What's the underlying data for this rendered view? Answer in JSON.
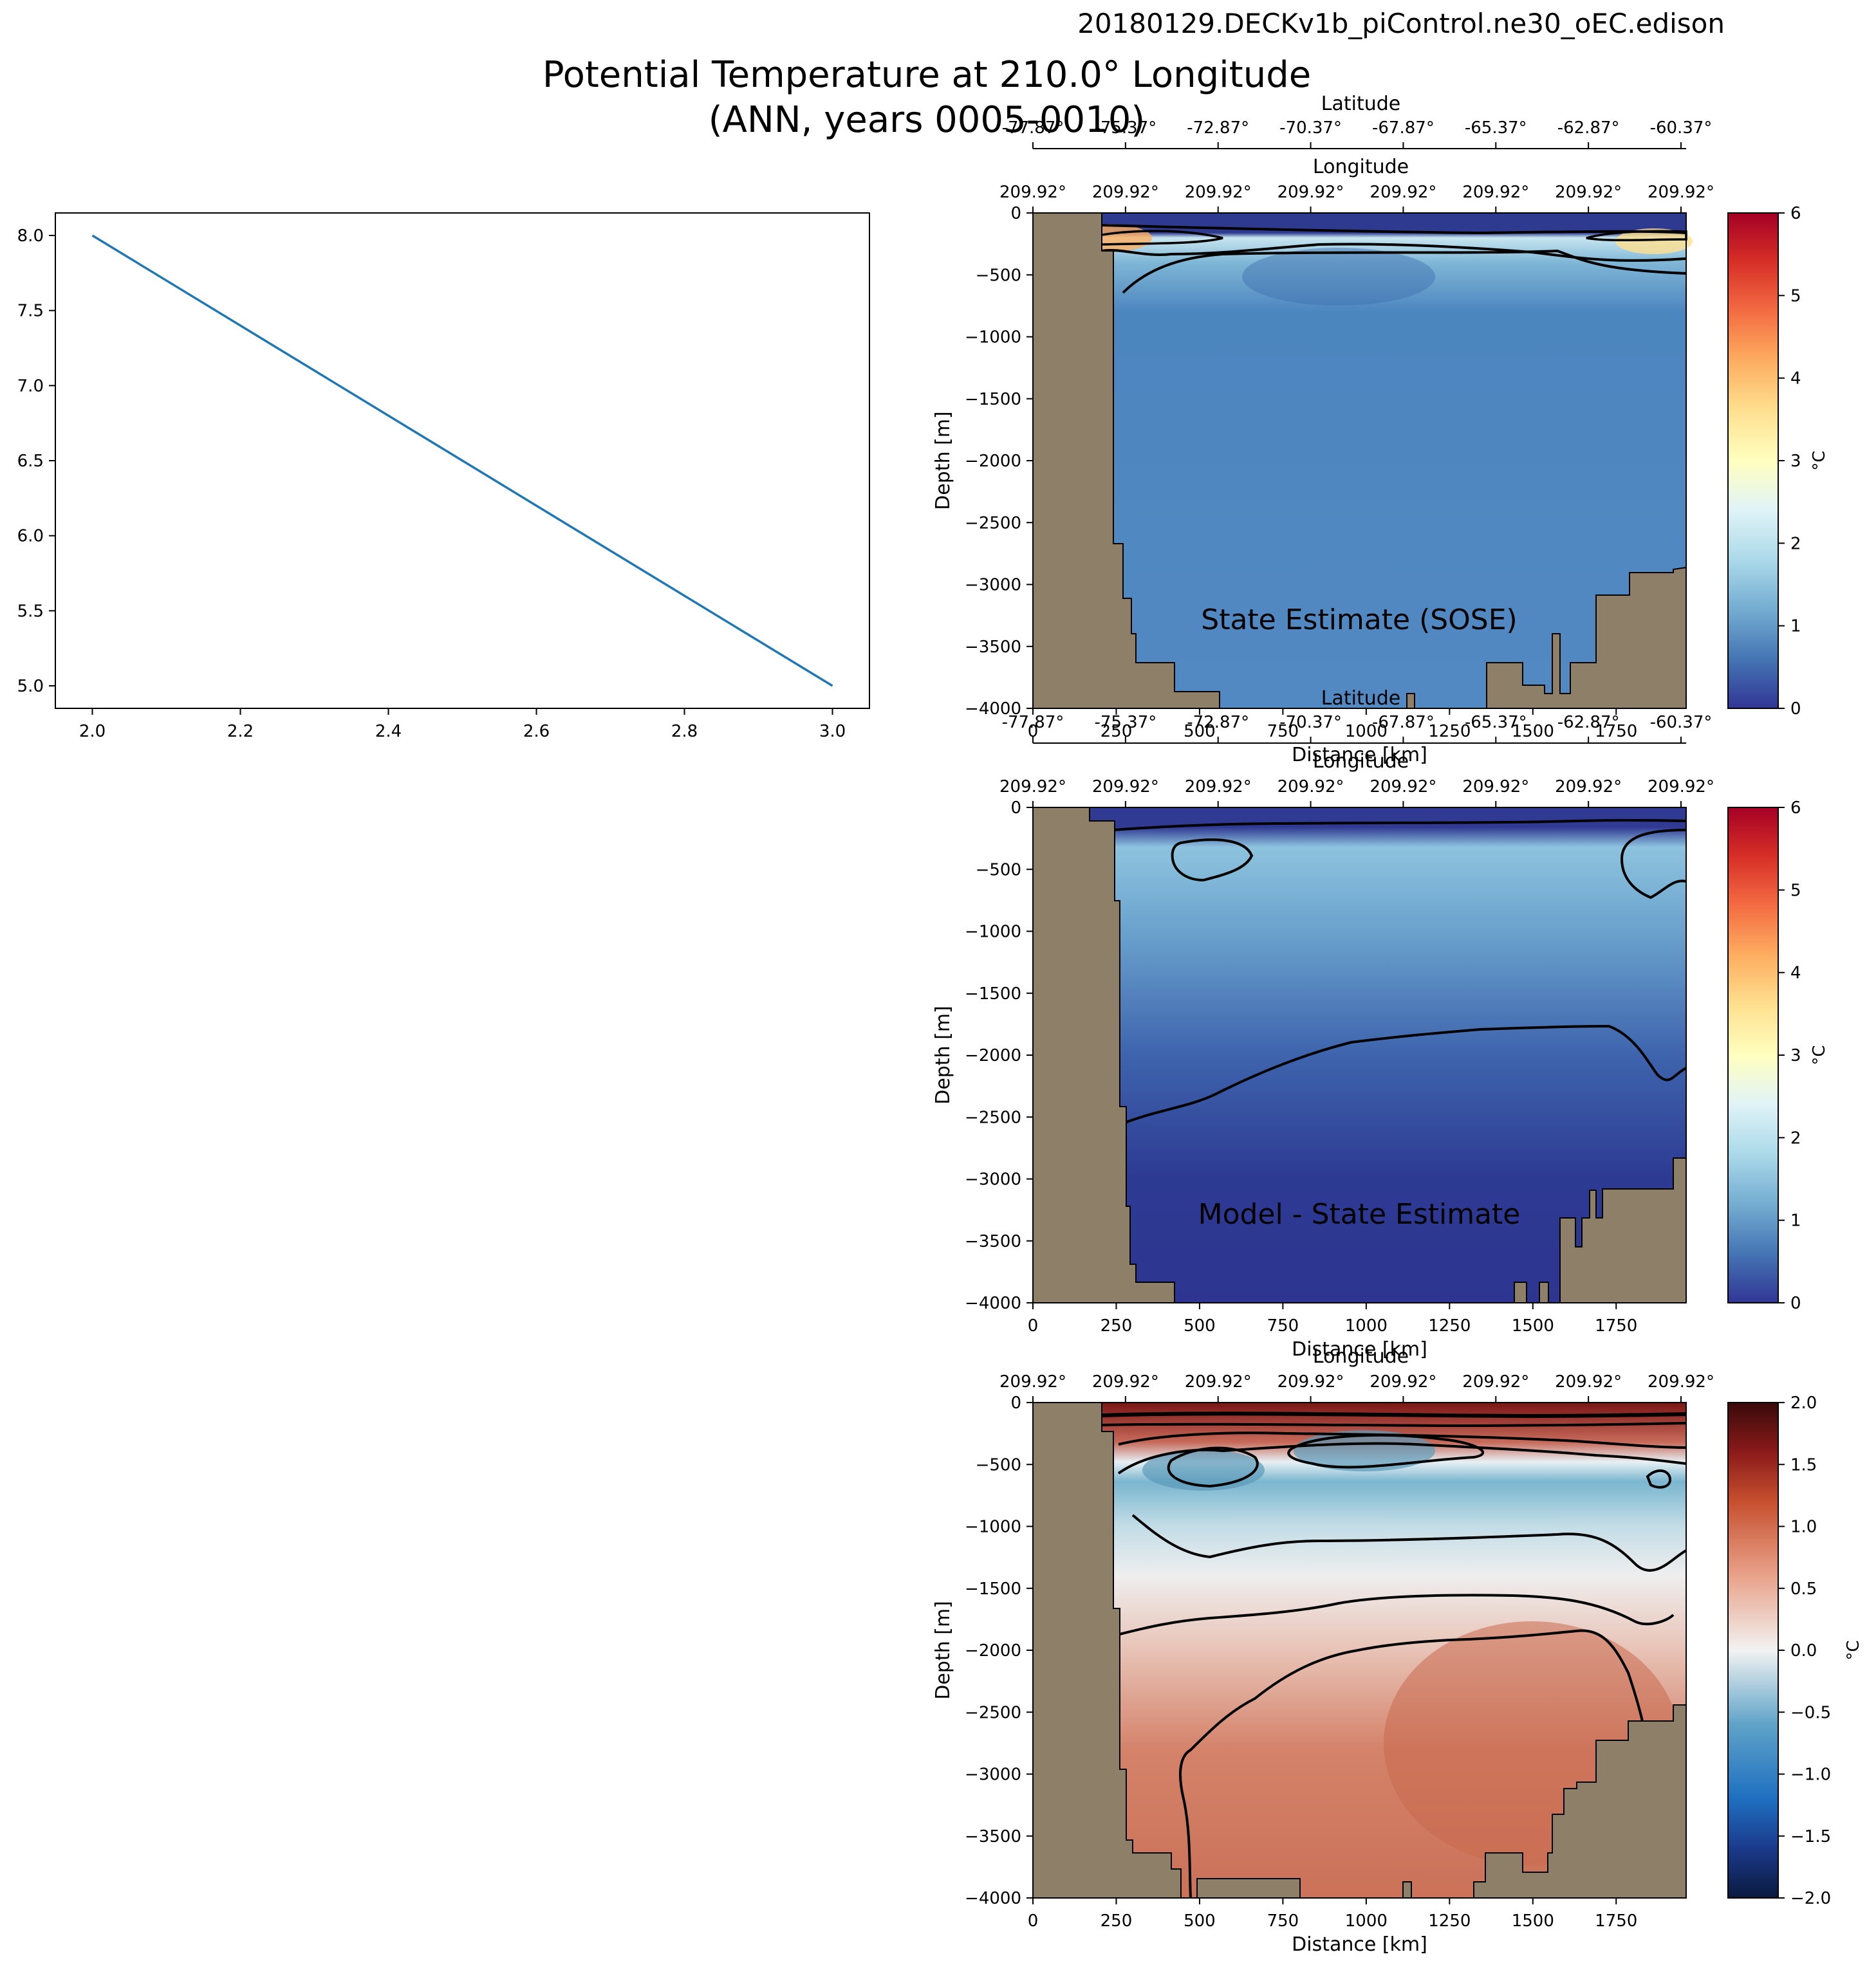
{
  "header": {
    "run_name": "20180129.DECKv1b_piControl.ne30_oEC.edison",
    "title_line1": "Potential Temperature at 210.0° Longitude",
    "title_line2": "(ANN, years 0005-0010)"
  },
  "colors": {
    "land": "#8e8068",
    "line": "#1f77b4",
    "contour": "#000000"
  },
  "chart_data": [
    {
      "type": "line",
      "x": [
        2.0,
        3.0
      ],
      "y": [
        8.0,
        5.0
      ],
      "xlim": [
        1.95,
        3.05
      ],
      "ylim": [
        4.85,
        8.15
      ],
      "xticks": [
        "2.0",
        "2.2",
        "2.4",
        "2.6",
        "2.8",
        "3.0"
      ],
      "yticks": [
        "5.0",
        "5.5",
        "6.0",
        "6.5",
        "7.0",
        "7.5",
        "8.0"
      ],
      "xlabel": "",
      "ylabel": "",
      "title": ""
    },
    {
      "type": "heatmap",
      "panel_label": "State Estimate (SOSE)",
      "xlabel": "Distance [km]",
      "ylabel": "Depth [m]",
      "colorbar_label": "°C",
      "colormap": "RdYlBu_r",
      "colorbar_range": [
        0,
        6
      ],
      "colorbar_ticks": [
        "0",
        "1",
        "2",
        "3",
        "4",
        "5",
        "6"
      ],
      "xlim": [
        0,
        1960
      ],
      "ylim": [
        -4000,
        0
      ],
      "xticks": [
        "0",
        "250",
        "500",
        "750",
        "1000",
        "1250",
        "1500",
        "1750"
      ],
      "yticks": [
        "0",
        "−500",
        "−1000",
        "−1500",
        "−2000",
        "−2500",
        "−3000",
        "−3500",
        "−4000"
      ],
      "latitude_label": "Latitude",
      "latitude_ticks": [
        "-77.87°",
        "-75.37°",
        "-72.87°",
        "-70.37°",
        "-67.87°",
        "-65.37°",
        "-62.87°",
        "-60.37°"
      ],
      "longitude_label": "Longitude",
      "longitude_ticks": [
        "209.92°",
        "209.92°",
        "209.92°",
        "209.92°",
        "209.92°",
        "209.92°",
        "209.92°",
        "209.92°"
      ]
    },
    {
      "type": "heatmap",
      "panel_label": "Model - State Estimate",
      "xlabel": "Distance [km]",
      "ylabel": "Depth [m]",
      "colorbar_label": "°C",
      "colormap": "RdYlBu_r",
      "colorbar_range": [
        0,
        6
      ],
      "colorbar_ticks": [
        "0",
        "1",
        "2",
        "3",
        "4",
        "5",
        "6"
      ],
      "xlim": [
        0,
        1960
      ],
      "ylim": [
        -4000,
        0
      ],
      "xticks": [
        "0",
        "250",
        "500",
        "750",
        "1000",
        "1250",
        "1500",
        "1750"
      ],
      "yticks": [
        "0",
        "−500",
        "−1000",
        "−1500",
        "−2000",
        "−2500",
        "−3000",
        "−3500",
        "−4000"
      ],
      "latitude_label": "Latitude",
      "latitude_ticks": [
        "-77.87°",
        "-75.37°",
        "-72.87°",
        "-70.37°",
        "-67.87°",
        "-65.37°",
        "-62.87°",
        "-60.37°"
      ],
      "longitude_label": "Longitude",
      "longitude_ticks": [
        "209.92°",
        "209.92°",
        "209.92°",
        "209.92°",
        "209.92°",
        "209.92°",
        "209.92°",
        "209.92°"
      ]
    },
    {
      "type": "heatmap",
      "panel_label": "",
      "xlabel": "Distance [km]",
      "ylabel": "Depth [m]",
      "colorbar_label": "°C",
      "colormap": "RdBu_r",
      "colorbar_range": [
        -2.0,
        2.0
      ],
      "colorbar_ticks": [
        "−2.0",
        "−1.5",
        "−1.0",
        "−0.5",
        "0.0",
        "0.5",
        "1.0",
        "1.5",
        "2.0"
      ],
      "xlim": [
        0,
        1960
      ],
      "ylim": [
        -4000,
        0
      ],
      "xticks": [
        "0",
        "250",
        "500",
        "750",
        "1000",
        "1250",
        "1500",
        "1750"
      ],
      "yticks": [
        "0",
        "−500",
        "−1000",
        "−1500",
        "−2000",
        "−2500",
        "−3000",
        "−3500",
        "−4000"
      ],
      "longitude_label": "Longitude",
      "longitude_ticks": [
        "209.92°",
        "209.92°",
        "209.92°",
        "209.92°",
        "209.92°",
        "209.92°",
        "209.92°",
        "209.92°"
      ]
    }
  ]
}
